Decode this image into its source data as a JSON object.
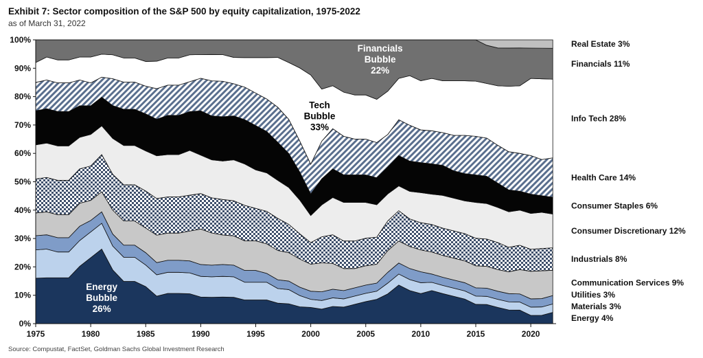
{
  "header": {
    "title": "Exhibit 7: Sector composition of the S&P 500 by equity capitalization, 1975-2022",
    "subtitle": "as of March 31, 2022"
  },
  "footer": {
    "source": "Source: Compustat, FactSet, Goldman Sachs Global Investment Research"
  },
  "chart_data": {
    "type": "area",
    "stacked": true,
    "title": "Exhibit 7: Sector composition of the S&P 500 by equity capitalization, 1975-2022",
    "subtitle": "as of March 31, 2022",
    "xlim": [
      1975,
      2022.3
    ],
    "ylim": [
      0,
      100
    ],
    "y_unit": "%",
    "grid": false,
    "legend_placement": "right",
    "x_ticks": [
      "1975",
      "1980",
      "1985",
      "1990",
      "1995",
      "2000",
      "2005",
      "2010",
      "2015",
      "2020"
    ],
    "y_ticks": [
      "0%",
      "10%",
      "20%",
      "30%",
      "40%",
      "50%",
      "60%",
      "70%",
      "80%",
      "90%",
      "100%"
    ],
    "x": [
      1975,
      1976,
      1977,
      1978,
      1979,
      1980,
      1981,
      1982,
      1983,
      1984,
      1985,
      1986,
      1987,
      1988,
      1989,
      1990,
      1991,
      1992,
      1993,
      1994,
      1995,
      1996,
      1997,
      1998,
      1999,
      2000,
      2001,
      2002,
      2003,
      2004,
      2005,
      2006,
      2007,
      2008,
      2009,
      2010,
      2011,
      2012,
      2013,
      2014,
      2015,
      2016,
      2017,
      2018,
      2019,
      2020,
      2021,
      2022
    ],
    "series": [
      {
        "name": "Energy 4%",
        "color": "#1b365d",
        "pattern": "solid",
        "values": [
          16,
          16,
          16,
          16,
          20,
          23,
          26,
          18,
          14,
          14,
          12,
          9,
          10,
          10,
          10,
          9,
          9,
          9,
          9,
          8,
          8,
          8,
          7,
          7,
          6,
          6,
          5,
          6,
          6,
          7,
          8,
          9,
          11,
          14,
          12,
          11,
          12,
          11,
          10,
          9,
          7,
          7,
          6,
          5,
          5,
          3,
          3,
          4
        ]
      },
      {
        "name": "Materials 3%",
        "color": "#bcd2ec",
        "pattern": "solid",
        "values": [
          10,
          10,
          9,
          9,
          9,
          9,
          9,
          8,
          8,
          8,
          7,
          7,
          7,
          7,
          7,
          7,
          7,
          7,
          7,
          6,
          6,
          6,
          5,
          5,
          4,
          3,
          3,
          3,
          3,
          3,
          3,
          3,
          4,
          4,
          4,
          4,
          3,
          3,
          3,
          3,
          3,
          3,
          3,
          3,
          3,
          3,
          3,
          3
        ]
      },
      {
        "name": "Utilities 3%",
        "color": "#7f9cc8",
        "pattern": "solid",
        "values": [
          5,
          5,
          5,
          5,
          5,
          4,
          4,
          4,
          4,
          4,
          4,
          4,
          4,
          4,
          4,
          4,
          4,
          4,
          4,
          4,
          4,
          3,
          3,
          3,
          3,
          3,
          3,
          3,
          3,
          3,
          3,
          3,
          4,
          4,
          4,
          4,
          3,
          3,
          3,
          3,
          3,
          3,
          3,
          3,
          3,
          3,
          3,
          3
        ]
      },
      {
        "name": "Communication Services 9%",
        "color": "#c8c8c8",
        "pattern": "solid",
        "values": [
          8,
          8,
          8,
          8,
          8,
          7,
          7,
          8,
          8,
          8,
          8,
          9,
          9,
          9,
          10,
          12,
          11,
          10,
          10,
          10,
          10,
          10,
          10,
          10,
          10,
          10,
          10,
          9,
          8,
          7,
          7,
          7,
          8,
          8,
          8,
          8,
          8,
          8,
          8,
          8,
          8,
          8,
          8,
          8,
          9,
          10,
          10,
          9
        ]
      },
      {
        "name": "Industrials 8%",
        "color": "#4a5f7d",
        "pattern": "checker",
        "values": [
          12,
          12,
          12,
          12,
          12,
          12,
          13,
          12,
          12,
          12,
          12,
          12,
          12,
          12,
          12,
          12,
          12,
          12,
          12,
          12,
          11,
          11,
          11,
          10,
          9,
          8,
          9,
          10,
          10,
          10,
          10,
          10,
          11,
          11,
          10,
          10,
          10,
          10,
          10,
          10,
          10,
          10,
          10,
          9,
          9,
          8,
          8,
          8
        ]
      },
      {
        "name": "Consumer Discretionary 12%",
        "color": "#ededed",
        "pattern": "solid",
        "values": [
          12,
          12,
          12,
          12,
          11,
          11,
          10,
          12,
          13,
          13,
          13,
          14,
          14,
          14,
          15,
          13,
          13,
          13,
          14,
          14,
          13,
          13,
          13,
          13,
          12,
          10,
          11,
          13,
          14,
          14,
          13,
          12,
          10,
          9,
          10,
          11,
          11,
          12,
          12,
          12,
          13,
          13,
          13,
          13,
          13,
          13,
          13,
          12
        ]
      },
      {
        "name": "Consumer Staples 6%",
        "color": "#050505",
        "pattern": "solid",
        "values": [
          12,
          12,
          12,
          12,
          11,
          10,
          10,
          11,
          12,
          12,
          12,
          12,
          13,
          13,
          13,
          15,
          15,
          15,
          15,
          15,
          15,
          14,
          13,
          12,
          10,
          8,
          9,
          10,
          10,
          10,
          10,
          10,
          10,
          11,
          11,
          11,
          11,
          11,
          10,
          10,
          10,
          10,
          9,
          8,
          7,
          7,
          6,
          6
        ]
      },
      {
        "name": "Health Care 14%",
        "color": "#4a5f7d",
        "pattern": "stripe",
        "values": [
          10,
          10,
          10,
          10,
          9,
          8,
          7,
          9,
          9,
          9,
          9,
          10,
          10,
          10,
          10,
          11,
          12,
          12,
          11,
          11,
          11,
          11,
          12,
          12,
          11,
          11,
          13,
          14,
          14,
          13,
          13,
          13,
          12,
          13,
          13,
          12,
          12,
          12,
          13,
          14,
          14,
          14,
          14,
          14,
          14,
          14,
          13,
          14
        ]
      },
      {
        "name": "Info Tech 28%",
        "color": "#ffffff",
        "pattern": "solid",
        "values": [
          7,
          8,
          8,
          8,
          8,
          9,
          8,
          8,
          8,
          8,
          8,
          9,
          9,
          9,
          9,
          8,
          9,
          9,
          9,
          10,
          12,
          14,
          17,
          20,
          26,
          33,
          18,
          15,
          16,
          16,
          16,
          16,
          16,
          15,
          18,
          18,
          19,
          19,
          20,
          20,
          20,
          20,
          22,
          24,
          25,
          28,
          29,
          28
        ]
      },
      {
        "name": "Financials 11%",
        "color": "#707070",
        "pattern": "solid",
        "values": [
          8,
          6,
          7,
          7,
          6,
          6,
          5,
          5,
          6,
          6,
          7,
          7,
          6,
          6,
          5,
          5,
          5,
          5,
          6,
          6,
          6,
          6,
          6,
          8,
          10,
          13,
          17,
          16,
          19,
          20,
          20,
          22,
          19,
          14,
          13,
          15,
          14,
          15,
          15,
          15,
          15,
          14,
          14,
          14,
          14,
          11,
          11,
          11
        ]
      },
      {
        "name": "Real Estate 3%",
        "color": "#c0c0c0",
        "pattern": "solid",
        "values": [
          0,
          0,
          0,
          0,
          0,
          0,
          0,
          0,
          0,
          0,
          0,
          0,
          0,
          0,
          0,
          0,
          0,
          0,
          0,
          0,
          0,
          0,
          0,
          0,
          0,
          0,
          0,
          0,
          0,
          0,
          0,
          0,
          0,
          0,
          0,
          0,
          0,
          0,
          0,
          0,
          0,
          2,
          3,
          3,
          3,
          3,
          3,
          3
        ]
      }
    ],
    "annotations": [
      {
        "lines": [
          "Energy",
          "Bubble",
          "26%"
        ],
        "x": 1981,
        "y": 8,
        "color": "#ffffff"
      },
      {
        "lines": [
          "Tech",
          "Bubble",
          "33%"
        ],
        "x": 2000.8,
        "y": 72,
        "color": "#000000"
      },
      {
        "lines": [
          "Financials",
          "Bubble",
          "22%"
        ],
        "x": 2006.3,
        "y": 92,
        "color": "#ffffff"
      }
    ]
  }
}
